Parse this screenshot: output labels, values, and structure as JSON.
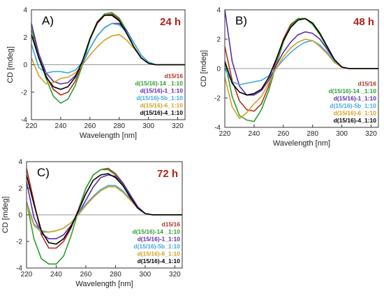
{
  "chart_data": [
    {
      "type": "line",
      "panel_label": "A)",
      "time_label": "24 h",
      "xlabel": "Wavelength [nm]",
      "ylabel": "CD [mdeg]",
      "xlim": [
        220,
        325
      ],
      "ylim": [
        -4,
        4
      ],
      "x_ticks": [
        220,
        240,
        260,
        280,
        300,
        320
      ],
      "y_ticks": [
        -4,
        -2,
        0,
        2,
        4
      ],
      "zero_line": true,
      "legend_position": "bottom-right",
      "series": [
        {
          "name": "d15/16",
          "color": "#b03020",
          "x": [
            220,
            225,
            230,
            235,
            240,
            245,
            250,
            255,
            260,
            265,
            270,
            275,
            280,
            285,
            290,
            295,
            300,
            305,
            310,
            315,
            320,
            325
          ],
          "y": [
            2.2,
            0.8,
            -0.8,
            -1.8,
            -2.2,
            -2.0,
            -1.2,
            0.2,
            1.8,
            3.0,
            3.6,
            3.7,
            3.3,
            2.4,
            1.3,
            0.5,
            0.1,
            0.0,
            0.0,
            0.0,
            0.0,
            0.0
          ]
        },
        {
          "name": "d(15/16)-14 _1:10",
          "color": "#2ca02c",
          "x": [
            220,
            225,
            230,
            235,
            240,
            245,
            250,
            255,
            260,
            265,
            270,
            275,
            280,
            285,
            290,
            295,
            300,
            305,
            310,
            315,
            320,
            325
          ],
          "y": [
            2.6,
            0.8,
            -1.0,
            -2.3,
            -2.8,
            -2.5,
            -1.5,
            0.0,
            1.8,
            3.1,
            3.7,
            3.8,
            3.4,
            2.5,
            1.3,
            0.5,
            0.1,
            0.0,
            0.0,
            0.0,
            0.0,
            0.0
          ]
        },
        {
          "name": "d(15/16)-1_1:10",
          "color": "#5a2ca8",
          "x": [
            220,
            225,
            230,
            235,
            240,
            245,
            250,
            255,
            260,
            265,
            270,
            275,
            280,
            285,
            290,
            295,
            300,
            305,
            310,
            315,
            320,
            325
          ],
          "y": [
            3.0,
            0.8,
            -0.6,
            -1.2,
            -1.4,
            -1.3,
            -0.8,
            0.1,
            1.2,
            2.1,
            2.7,
            3.0,
            3.0,
            2.5,
            1.6,
            0.7,
            0.2,
            0.0,
            0.0,
            0.0,
            0.0,
            0.0
          ]
        },
        {
          "name": "d(15/16)-5b_1:10",
          "color": "#3fa9e0",
          "x": [
            220,
            225,
            230,
            235,
            240,
            245,
            250,
            255,
            260,
            265,
            270,
            275,
            280,
            285,
            290,
            295,
            300,
            305,
            310,
            315,
            320,
            325
          ],
          "y": [
            1.5,
            -0.2,
            -0.6,
            -0.5,
            -0.5,
            -0.6,
            -0.4,
            0.2,
            1.2,
            2.1,
            2.7,
            3.0,
            2.9,
            2.4,
            1.6,
            0.7,
            0.2,
            0.0,
            0.0,
            0.0,
            0.0,
            0.0
          ]
        },
        {
          "name": "d(15/16)-6_1:10",
          "color": "#d4a020",
          "x": [
            220,
            225,
            230,
            235,
            240,
            245,
            250,
            255,
            260,
            265,
            270,
            275,
            280,
            285,
            290,
            295,
            300,
            305,
            310,
            315,
            320,
            325
          ],
          "y": [
            0.5,
            -0.8,
            -1.4,
            -1.3,
            -1.0,
            -0.9,
            -0.6,
            0.0,
            0.7,
            1.3,
            1.8,
            2.1,
            2.2,
            1.8,
            1.2,
            0.5,
            0.1,
            0.0,
            0.0,
            0.0,
            0.0,
            0.0
          ]
        },
        {
          "name": "d(15/16)-4_1:10",
          "color": "#000000",
          "x": [
            220,
            225,
            230,
            235,
            240,
            245,
            250,
            255,
            260,
            265,
            270,
            275,
            280,
            285,
            290,
            295,
            300,
            305,
            310,
            315,
            320,
            325
          ],
          "y": [
            2.2,
            0.5,
            -0.9,
            -1.6,
            -1.8,
            -1.6,
            -0.9,
            0.3,
            1.9,
            3.1,
            3.6,
            3.6,
            3.2,
            2.3,
            1.3,
            0.5,
            0.1,
            0.0,
            0.0,
            0.0,
            0.0,
            0.0
          ]
        }
      ]
    },
    {
      "type": "line",
      "panel_label": "B)",
      "time_label": "48 h",
      "xlabel": "Wavelength [nm]",
      "ylabel": "CD [mdeg]",
      "xlim": [
        220,
        325
      ],
      "ylim": [
        -4,
        4
      ],
      "x_ticks": [
        220,
        240,
        260,
        280,
        300,
        320
      ],
      "y_ticks": [
        -4,
        -2,
        0,
        2,
        4
      ],
      "zero_line": true,
      "legend_position": "bottom-right",
      "series": [
        {
          "name": "d15/16",
          "color": "#b03020",
          "x": [
            220,
            225,
            230,
            235,
            240,
            245,
            250,
            255,
            260,
            265,
            270,
            275,
            280,
            285,
            290,
            295,
            300,
            305,
            310,
            315,
            320,
            325
          ],
          "y": [
            1.5,
            -0.8,
            -2.2,
            -2.8,
            -2.9,
            -2.4,
            -1.2,
            0.5,
            2.0,
            3.0,
            3.4,
            3.4,
            3.1,
            2.4,
            1.4,
            0.6,
            0.1,
            0.0,
            0.0,
            0.0,
            0.0,
            0.0
          ]
        },
        {
          "name": "d(15/16)-14 _1:10",
          "color": "#2ca02c",
          "x": [
            220,
            225,
            230,
            235,
            240,
            245,
            250,
            255,
            260,
            265,
            270,
            275,
            280,
            285,
            290,
            295,
            300,
            305,
            310,
            315,
            320,
            325
          ],
          "y": [
            0.5,
            -1.9,
            -3.2,
            -3.5,
            -3.6,
            -2.8,
            -1.5,
            0.2,
            1.8,
            2.9,
            3.4,
            3.4,
            3.0,
            2.3,
            1.4,
            0.6,
            0.1,
            0.0,
            0.0,
            0.0,
            0.0,
            0.0
          ]
        },
        {
          "name": "d(15/16)-1_1:10",
          "color": "#5a2ca8",
          "x": [
            220,
            225,
            230,
            235,
            240,
            245,
            250,
            255,
            260,
            265,
            270,
            275,
            280,
            285,
            290,
            295,
            300,
            305,
            310,
            315,
            320,
            325
          ],
          "y": [
            4.0,
            0.5,
            -1.2,
            -1.8,
            -1.8,
            -1.5,
            -0.8,
            0.2,
            1.1,
            1.8,
            2.3,
            2.5,
            2.4,
            2.0,
            1.3,
            0.6,
            0.1,
            0.0,
            0.0,
            0.0,
            0.0,
            0.0
          ]
        },
        {
          "name": "d(15/16)-5b_1:10",
          "color": "#3fa9e0",
          "x": [
            220,
            225,
            230,
            235,
            240,
            245,
            250,
            255,
            260,
            265,
            270,
            275,
            280,
            285,
            290,
            295,
            300,
            305,
            310,
            315,
            320,
            325
          ],
          "y": [
            0.0,
            -0.9,
            -1.1,
            -1.0,
            -0.9,
            -0.8,
            -0.5,
            0.0,
            0.6,
            1.1,
            1.5,
            1.8,
            1.9,
            1.6,
            1.1,
            0.5,
            0.1,
            0.0,
            0.0,
            0.0,
            0.0,
            0.0
          ]
        },
        {
          "name": "d(15/16)-6_1:10",
          "color": "#d4a020",
          "x": [
            220,
            225,
            230,
            235,
            240,
            245,
            250,
            255,
            260,
            265,
            270,
            275,
            280,
            285,
            290,
            295,
            300,
            305,
            310,
            315,
            320,
            325
          ],
          "y": [
            -0.6,
            -2.6,
            -3.4,
            -3.0,
            -2.4,
            -1.9,
            -1.0,
            0.0,
            0.8,
            1.4,
            1.8,
            2.0,
            1.9,
            1.5,
            1.0,
            0.4,
            0.1,
            0.0,
            0.0,
            0.0,
            0.0,
            0.0
          ]
        },
        {
          "name": "d(15/16)-4_1:10",
          "color": "#000000",
          "x": [
            220,
            225,
            230,
            235,
            240,
            245,
            250,
            255,
            260,
            265,
            270,
            275,
            280,
            285,
            290,
            295,
            300,
            305,
            310,
            315,
            320,
            325
          ],
          "y": [
            0.5,
            -1.0,
            -1.6,
            -1.8,
            -1.7,
            -1.4,
            -0.6,
            0.6,
            1.9,
            2.8,
            3.3,
            3.4,
            3.1,
            2.4,
            1.5,
            0.6,
            0.1,
            0.0,
            0.0,
            0.0,
            0.0,
            0.0
          ]
        }
      ]
    },
    {
      "type": "line",
      "panel_label": "C)",
      "time_label": "72 h",
      "xlabel": "Wavelength [nm]",
      "ylabel": "CD [mdeg]",
      "xlim": [
        220,
        325
      ],
      "ylim": [
        -4,
        4
      ],
      "x_ticks": [
        220,
        240,
        260,
        280,
        300,
        320
      ],
      "y_ticks": [
        -4,
        -2,
        0,
        2,
        4
      ],
      "zero_line": true,
      "legend_position": "bottom-right",
      "series": [
        {
          "name": "d15/16",
          "color": "#b03020",
          "x": [
            220,
            225,
            230,
            235,
            240,
            245,
            250,
            255,
            260,
            265,
            270,
            275,
            280,
            285,
            290,
            295,
            300,
            305,
            310,
            315,
            320,
            325
          ],
          "y": [
            3.5,
            1.0,
            -1.5,
            -2.5,
            -2.5,
            -2.0,
            -1.0,
            0.4,
            2.0,
            3.0,
            3.4,
            3.5,
            3.1,
            2.4,
            1.4,
            0.6,
            0.1,
            0.0,
            0.0,
            0.0,
            0.0,
            0.0
          ]
        },
        {
          "name": "d(15/16)-14 _1:10",
          "color": "#2ca02c",
          "x": [
            220,
            225,
            230,
            235,
            240,
            245,
            250,
            255,
            260,
            265,
            270,
            275,
            280,
            285,
            290,
            295,
            300,
            305,
            310,
            315,
            320,
            325
          ],
          "y": [
            1.0,
            -1.8,
            -3.3,
            -3.7,
            -3.7,
            -3.1,
            -1.6,
            0.3,
            2.0,
            3.0,
            3.4,
            3.4,
            3.0,
            2.3,
            1.3,
            0.5,
            0.1,
            0.0,
            0.0,
            0.0,
            0.0,
            0.0
          ]
        },
        {
          "name": "d(15/16)-1_1:10",
          "color": "#5a2ca8",
          "x": [
            220,
            225,
            230,
            235,
            240,
            245,
            250,
            255,
            260,
            265,
            270,
            275,
            280,
            285,
            290,
            295,
            300,
            305,
            310,
            315,
            320,
            325
          ],
          "y": [
            2.5,
            -0.2,
            -1.4,
            -1.8,
            -1.8,
            -1.5,
            -0.8,
            0.1,
            1.1,
            2.1,
            2.8,
            3.0,
            2.9,
            2.4,
            1.5,
            0.6,
            0.1,
            0.0,
            0.0,
            0.0,
            0.0,
            0.0
          ]
        },
        {
          "name": "d(15/16)-5b_1:10",
          "color": "#3fa9e0",
          "x": [
            220,
            225,
            230,
            235,
            240,
            245,
            250,
            255,
            260,
            265,
            270,
            275,
            280,
            285,
            290,
            295,
            300,
            305,
            310,
            315,
            320,
            325
          ],
          "y": [
            1.0,
            -0.7,
            -1.2,
            -1.3,
            -1.2,
            -1.0,
            -0.6,
            0.1,
            0.8,
            1.4,
            1.9,
            2.2,
            2.2,
            1.8,
            1.2,
            0.5,
            0.1,
            0.0,
            0.0,
            0.0,
            0.0,
            0.0
          ]
        },
        {
          "name": "d(15/16)-6_1:10",
          "color": "#d4a020",
          "x": [
            220,
            225,
            230,
            235,
            240,
            245,
            250,
            255,
            260,
            265,
            270,
            275,
            280,
            285,
            290,
            295,
            300,
            305,
            310,
            315,
            320,
            325
          ],
          "y": [
            0.8,
            -0.8,
            -1.3,
            -1.3,
            -1.2,
            -1.0,
            -0.6,
            0.0,
            0.7,
            1.3,
            1.8,
            2.1,
            2.1,
            1.7,
            1.1,
            0.5,
            0.1,
            0.0,
            0.0,
            0.0,
            0.0,
            0.0
          ]
        },
        {
          "name": "d(15/16)-4_1:10",
          "color": "#000000",
          "x": [
            220,
            225,
            230,
            235,
            240,
            245,
            250,
            255,
            260,
            265,
            270,
            275,
            280,
            285,
            290,
            295,
            300,
            305,
            310,
            315,
            320,
            325
          ],
          "y": [
            3.0,
            0.8,
            -1.2,
            -2.1,
            -2.2,
            -1.8,
            -0.9,
            0.3,
            1.6,
            2.6,
            3.0,
            3.1,
            2.8,
            2.2,
            1.3,
            0.5,
            0.1,
            0.0,
            0.0,
            0.0,
            0.0,
            0.0
          ]
        }
      ]
    }
  ]
}
